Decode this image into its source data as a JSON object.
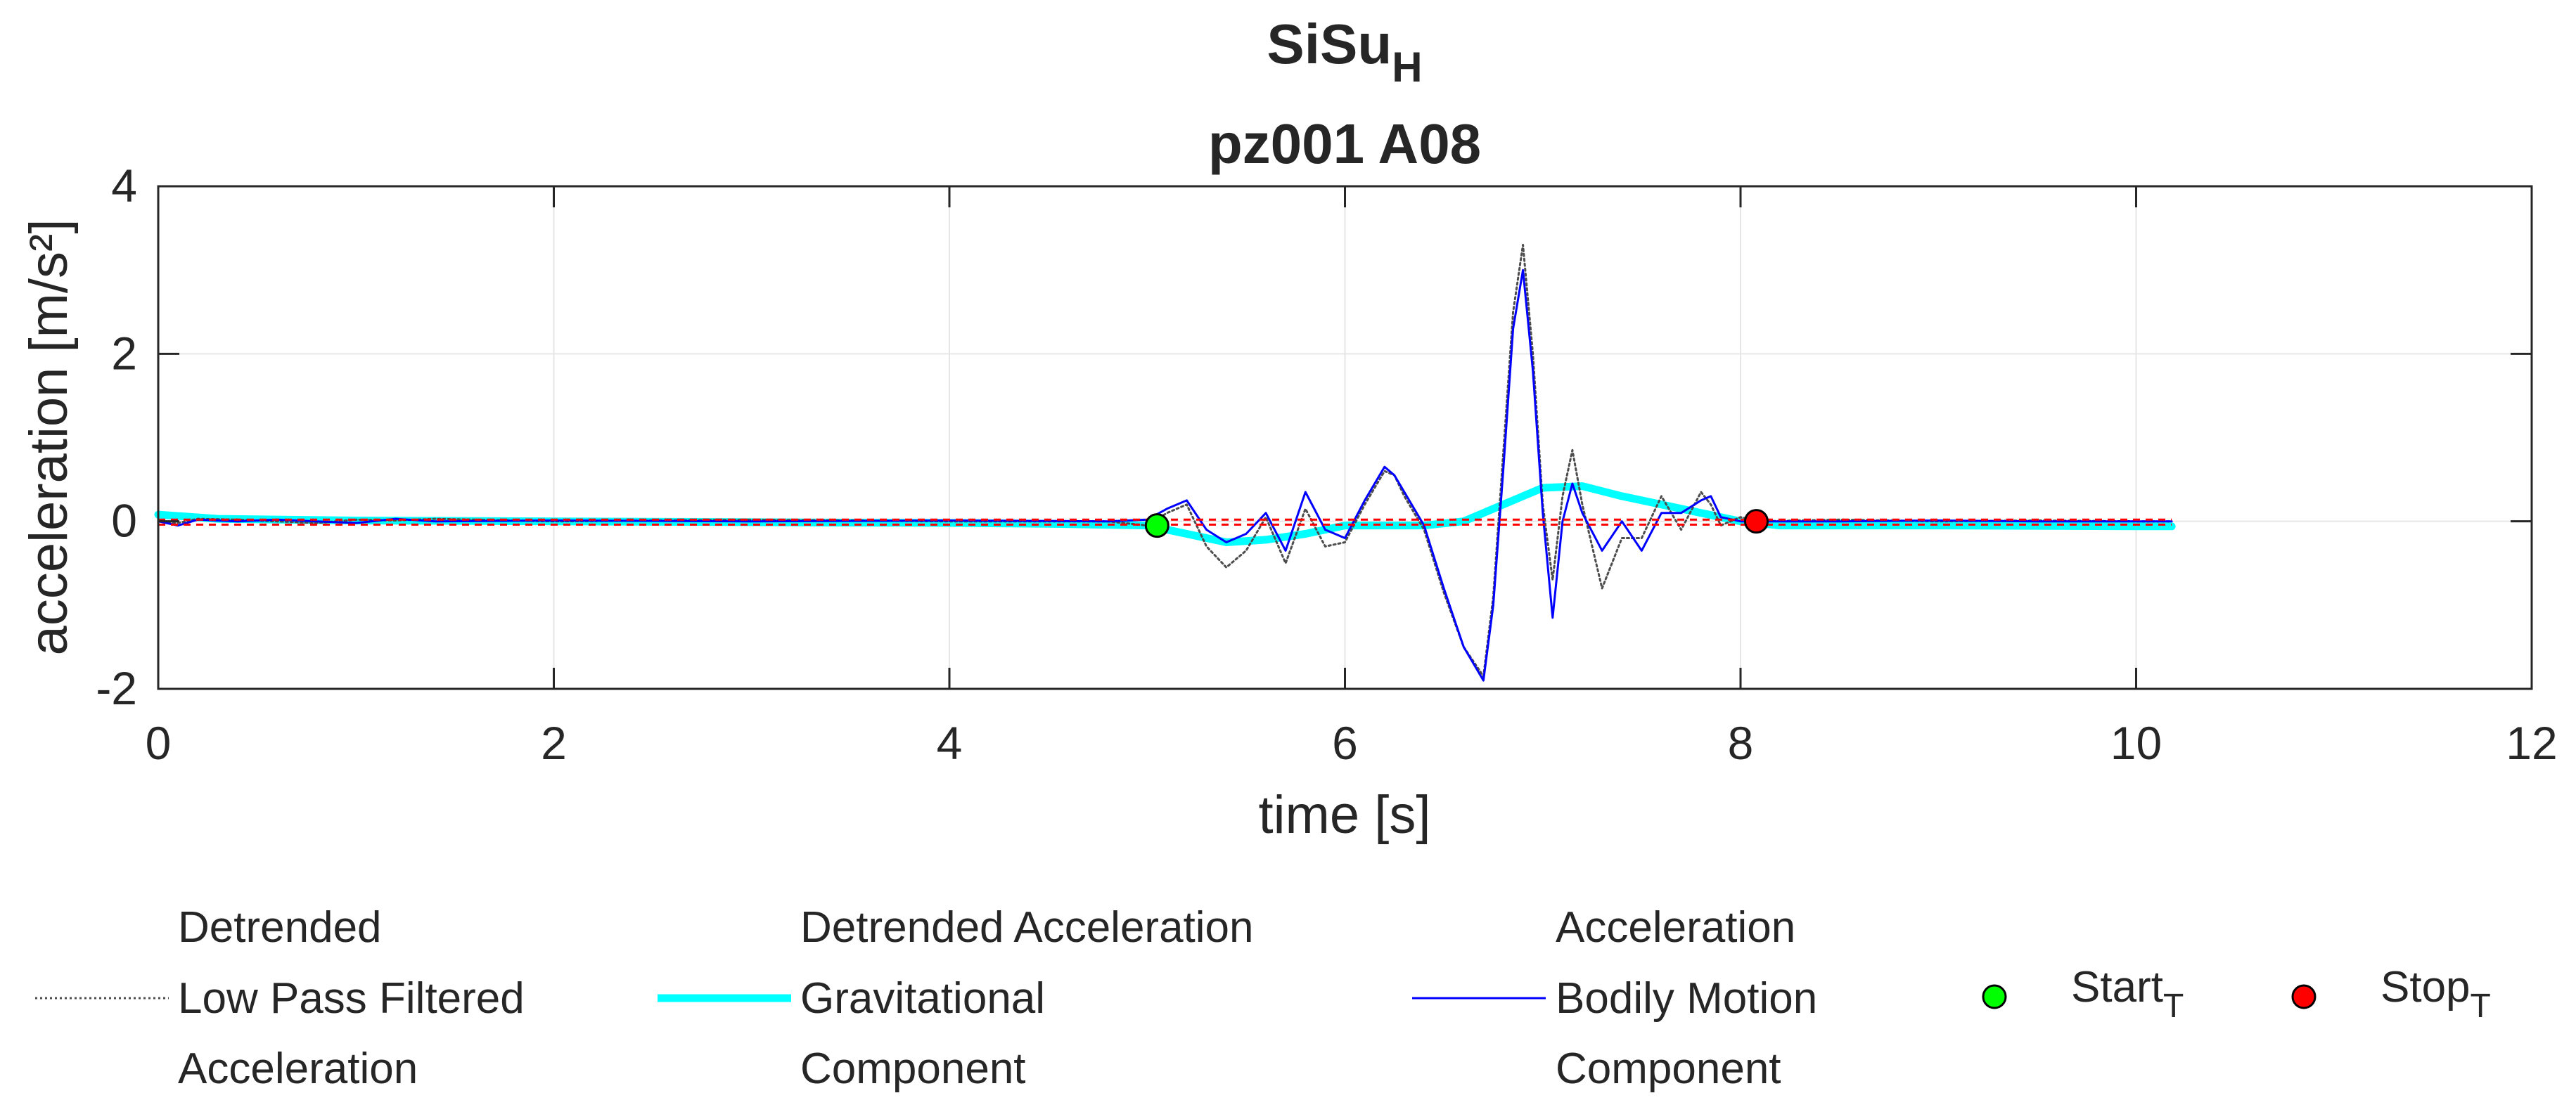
{
  "chart_data": {
    "type": "line",
    "title": {
      "main": "SiSu",
      "subscript": "H",
      "line2": "pz001 A08"
    },
    "xlabel": "time [s]",
    "ylabel": "acceleration [m/s²]",
    "xlim": [
      0,
      12
    ],
    "ylim": [
      -2,
      4
    ],
    "xticks": [
      "0",
      "2",
      "4",
      "6",
      "8",
      "10",
      "12"
    ],
    "yticks": [
      "-2",
      "0",
      "2",
      "4"
    ],
    "grid": true,
    "colors": {
      "low_pass": "#4d4d4d",
      "gravitational": "#00ffff",
      "bodily": "#0000ff",
      "threshold": "#ff0000",
      "start": "#00ff00",
      "stop": "#ff0000"
    },
    "series": [
      {
        "name": "Detrended Low Pass Filtered Acceleration",
        "style": "dotted",
        "x": [
          0,
          0.1,
          0.2,
          0.4,
          0.6,
          0.8,
          1.0,
          1.2,
          1.4,
          2.0,
          3.0,
          4.0,
          4.8,
          5.0,
          5.1,
          5.2,
          5.3,
          5.4,
          5.5,
          5.6,
          5.7,
          5.8,
          5.9,
          6.0,
          6.1,
          6.2,
          6.25,
          6.3,
          6.4,
          6.5,
          6.6,
          6.7,
          6.75,
          6.8,
          6.85,
          6.9,
          6.95,
          7.0,
          7.05,
          7.1,
          7.15,
          7.2,
          7.3,
          7.4,
          7.5,
          7.6,
          7.7,
          7.8,
          7.85,
          7.9,
          8.0,
          8.1,
          8.5,
          9.0,
          9.5,
          10.0,
          10.18
        ],
        "values": [
          0,
          -0.02,
          0.03,
          0.02,
          0.0,
          -0.02,
          0.02,
          0.01,
          0.03,
          0.0,
          0.02,
          0.0,
          0.0,
          -0.05,
          0.1,
          0.2,
          -0.3,
          -0.55,
          -0.35,
          0.05,
          -0.5,
          0.15,
          -0.3,
          -0.25,
          0.2,
          0.6,
          0.55,
          0.3,
          -0.1,
          -0.85,
          -1.5,
          -1.85,
          -0.9,
          0.8,
          2.5,
          3.3,
          2.0,
          0.2,
          -0.7,
          0.3,
          0.85,
          0.2,
          -0.8,
          -0.2,
          -0.2,
          0.3,
          -0.1,
          0.35,
          0.2,
          -0.05,
          0.05,
          0.0,
          0.02,
          0.0,
          0.01,
          0.0,
          0.0
        ]
      },
      {
        "name": "Detrended Acceleration Gravitational Component",
        "style": "thick",
        "x": [
          0,
          0.3,
          1.0,
          2.0,
          3.0,
          4.0,
          4.5,
          5.0,
          5.2,
          5.4,
          5.6,
          5.8,
          6.0,
          6.2,
          6.4,
          6.6,
          6.8,
          7.0,
          7.2,
          7.4,
          7.6,
          7.8,
          8.0,
          8.2,
          8.4,
          9.0,
          10.0,
          10.18
        ],
        "values": [
          0.08,
          0.03,
          0.01,
          0.0,
          -0.01,
          -0.02,
          -0.03,
          -0.05,
          -0.15,
          -0.25,
          -0.22,
          -0.15,
          -0.05,
          -0.05,
          -0.05,
          0.0,
          0.2,
          0.4,
          0.42,
          0.3,
          0.2,
          0.1,
          0.0,
          -0.05,
          -0.05,
          -0.05,
          -0.06,
          -0.06
        ]
      },
      {
        "name": "Acceleration Bodily Motion Component",
        "style": "thin",
        "x": [
          0,
          0.1,
          0.2,
          0.4,
          0.6,
          0.8,
          1.0,
          1.2,
          1.4,
          2.0,
          3.0,
          4.0,
          4.8,
          5.0,
          5.1,
          5.2,
          5.3,
          5.4,
          5.5,
          5.6,
          5.7,
          5.8,
          5.9,
          6.0,
          6.1,
          6.2,
          6.25,
          6.3,
          6.4,
          6.5,
          6.6,
          6.7,
          6.75,
          6.8,
          6.85,
          6.9,
          6.95,
          7.0,
          7.05,
          7.1,
          7.15,
          7.2,
          7.3,
          7.4,
          7.5,
          7.6,
          7.7,
          7.8,
          7.85,
          7.9,
          8.0,
          8.1,
          8.5,
          9.0,
          9.5,
          10.0,
          10.18
        ],
        "values": [
          0,
          -0.05,
          0.02,
          0.0,
          0.02,
          0.0,
          -0.02,
          0.03,
          0.0,
          0.01,
          0.0,
          0.01,
          0.0,
          0.02,
          0.15,
          0.25,
          -0.1,
          -0.25,
          -0.15,
          0.1,
          -0.35,
          0.35,
          -0.1,
          -0.2,
          0.25,
          0.65,
          0.55,
          0.35,
          -0.05,
          -0.8,
          -1.5,
          -1.9,
          -1.0,
          0.6,
          2.3,
          3.0,
          1.8,
          0.1,
          -1.15,
          0.0,
          0.45,
          0.1,
          -0.35,
          0.0,
          -0.35,
          0.1,
          0.1,
          0.25,
          0.3,
          0.05,
          0.0,
          0.0,
          0.0,
          0.01,
          0.0,
          0.0,
          0.0
        ]
      }
    ],
    "threshold_lines": {
      "name": "threshold",
      "x_range": [
        0,
        10.18
      ],
      "values": [
        0.02,
        -0.04
      ]
    },
    "markers": [
      {
        "name": "Start",
        "subscript": "T",
        "x": 5.05,
        "y": -0.05
      },
      {
        "name": "Stop",
        "subscript": "T",
        "x": 8.08,
        "y": 0.0
      }
    ],
    "legend": {
      "position": "bottom",
      "entries": [
        {
          "lines": [
            "Detrended",
            "Low Pass Filtered",
            "Acceleration"
          ]
        },
        {
          "lines": [
            "Detrended Acceleration",
            "Gravitational",
            "Component"
          ]
        },
        {
          "lines": [
            "Acceleration",
            "Bodily Motion",
            "Component"
          ]
        },
        {
          "label": "Start",
          "subscript": "T"
        },
        {
          "label": "Stop",
          "subscript": "T"
        }
      ]
    }
  }
}
